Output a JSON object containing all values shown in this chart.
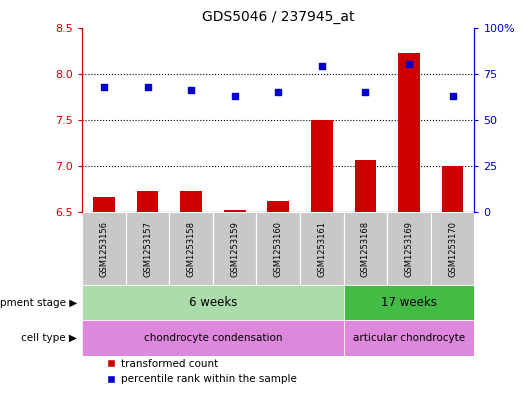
{
  "title": "GDS5046 / 237945_at",
  "samples": [
    "GSM1253156",
    "GSM1253157",
    "GSM1253158",
    "GSM1253159",
    "GSM1253160",
    "GSM1253161",
    "GSM1253168",
    "GSM1253169",
    "GSM1253170"
  ],
  "transformed_count": [
    6.67,
    6.73,
    6.73,
    6.52,
    6.62,
    7.5,
    7.07,
    8.22,
    7.0
  ],
  "percentile_rank": [
    68,
    68,
    66,
    63,
    65,
    79,
    65,
    80,
    63
  ],
  "ylim_left": [
    6.5,
    8.5
  ],
  "ylim_right": [
    0,
    100
  ],
  "yticks_left": [
    6.5,
    7.0,
    7.5,
    8.0,
    8.5
  ],
  "yticks_right": [
    0,
    25,
    50,
    75,
    100
  ],
  "ytick_labels_right": [
    "0",
    "25",
    "50",
    "75",
    "100%"
  ],
  "bar_color": "#cc0000",
  "dot_color": "#0000cc",
  "background_color": "#ffffff",
  "sample_box_color": "#c8c8c8",
  "development_stage_label": "development stage",
  "cell_type_label": "cell type",
  "groups": [
    {
      "label": "6 weeks",
      "start": 0,
      "end": 5,
      "color": "#aaddaa"
    },
    {
      "label": "17 weeks",
      "start": 6,
      "end": 8,
      "color": "#44bb44"
    }
  ],
  "cell_types": [
    {
      "label": "chondrocyte condensation",
      "start": 0,
      "end": 5,
      "color": "#dd88dd"
    },
    {
      "label": "articular chondrocyte",
      "start": 6,
      "end": 8,
      "color": "#dd88dd"
    }
  ],
  "legend_items": [
    {
      "label": "transformed count",
      "color": "#cc0000",
      "marker": "s"
    },
    {
      "label": "percentile rank within the sample",
      "color": "#0000cc",
      "marker": "s"
    }
  ],
  "gridlines": [
    7.0,
    7.5,
    8.0
  ]
}
